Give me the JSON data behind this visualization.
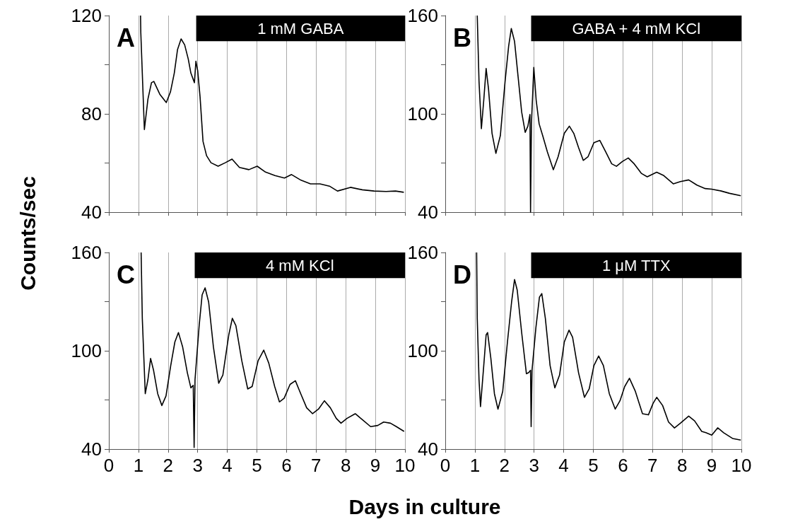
{
  "chart_data": [
    {
      "type": "line",
      "title": "A",
      "ylabel": "Counts/sec",
      "xlim": [
        0,
        10
      ],
      "xticks": [
        0,
        1,
        2,
        3,
        4,
        5,
        6,
        7,
        8,
        9,
        10
      ],
      "ylim": [
        40,
        120
      ],
      "yticks": [
        40,
        {
          "value": 60,
          "label": null
        },
        80,
        {
          "value": 100,
          "label": null
        },
        120
      ],
      "grid": "x",
      "tick_labels": "y",
      "bands": [
        {
          "axis": "x",
          "from": 2.95,
          "to": 10,
          "label": "1 mM GABA",
          "color": "#000000"
        }
      ],
      "series": [
        {
          "color": "#000000",
          "x": [
            1.07,
            1.08,
            1.2,
            1.32,
            1.44,
            1.52,
            1.72,
            1.94,
            2.08,
            2.21,
            2.32,
            2.44,
            2.56,
            2.68,
            2.77,
            2.89,
            2.94,
            3.0,
            3.08,
            3.18,
            3.3,
            3.45,
            3.69,
            3.93,
            4.16,
            4.41,
            4.73,
            5.01,
            5.29,
            5.61,
            5.93,
            6.17,
            6.49,
            6.81,
            7.13,
            7.45,
            7.72,
            8.16,
            8.56,
            8.96,
            9.36,
            9.68,
            9.96
          ],
          "values": [
            120,
            112.9,
            73.6,
            86,
            92.7,
            93.2,
            88,
            84.6,
            88.9,
            96.6,
            106.2,
            110.5,
            108.1,
            102.4,
            96.6,
            92.7,
            101.4,
            97.6,
            87,
            68.8,
            63,
            60.1,
            58.7,
            60.1,
            61.6,
            58.2,
            57.3,
            58.7,
            56.3,
            54.9,
            53.9,
            55.3,
            53,
            51.5,
            51.5,
            50.6,
            48.6,
            50.1,
            49.1,
            48.6,
            48.4,
            48.6,
            48.1
          ]
        }
      ]
    },
    {
      "type": "line",
      "title": "B",
      "xlim": [
        0,
        10
      ],
      "xticks": [
        0,
        1,
        2,
        3,
        4,
        5,
        6,
        7,
        8,
        9,
        10
      ],
      "ylim": [
        40,
        160
      ],
      "yticks": [
        40,
        {
          "value": 70,
          "label": null
        },
        100,
        {
          "value": 130,
          "label": null
        },
        160
      ],
      "grid": "x",
      "tick_labels": "y",
      "bands": [
        {
          "axis": "x",
          "from": 2.9,
          "to": 10,
          "label": "GABA + 4 mM KCl",
          "color": "#000000"
        }
      ],
      "series": [
        {
          "color": "#000000",
          "x": [
            1.08,
            1.14,
            1.22,
            1.3,
            1.38,
            1.46,
            1.58,
            1.71,
            1.86,
            2.02,
            2.14,
            2.23,
            2.34,
            2.46,
            2.58,
            2.7,
            2.79,
            2.86,
            2.88,
            2.91,
            2.99,
            3.07,
            3.17,
            3.29,
            3.45,
            3.65,
            3.81,
            4.02,
            4.19,
            4.34,
            4.5,
            4.66,
            4.82,
            5.02,
            5.22,
            5.42,
            5.62,
            5.78,
            5.98,
            6.18,
            6.38,
            6.62,
            6.82,
            7.14,
            7.38,
            7.7,
            7.94,
            8.22,
            8.5,
            8.78,
            9.0,
            9.3,
            9.6,
            9.98
          ],
          "values": [
            160,
            119.8,
            91,
            108.3,
            127.7,
            115.4,
            88.1,
            75.9,
            86.7,
            119.8,
            141.3,
            152.1,
            144.2,
            122.6,
            101.1,
            88.7,
            92.5,
            99.6,
            40,
            93.9,
            128.4,
            108.3,
            93.9,
            86.7,
            76.7,
            65.9,
            73.8,
            88.1,
            92.5,
            88.1,
            79.5,
            71.6,
            73.8,
            82.4,
            83.8,
            76.7,
            69.5,
            68,
            70.9,
            73.1,
            69.5,
            63.7,
            61.6,
            64.4,
            62.3,
            57.3,
            58.7,
            59.7,
            56.5,
            54.4,
            54,
            53,
            51.5,
            50
          ]
        }
      ]
    },
    {
      "type": "line",
      "title": "C",
      "xlabel": "Days in culture",
      "xlim": [
        0,
        10
      ],
      "xticks": [
        0,
        1,
        2,
        3,
        4,
        5,
        6,
        7,
        8,
        9,
        10
      ],
      "ylim": [
        40,
        160
      ],
      "yticks": [
        40,
        {
          "value": 70,
          "label": null
        },
        100,
        {
          "value": 130,
          "label": null
        },
        160
      ],
      "grid": "x",
      "bands": [
        {
          "axis": "x",
          "from": 2.9,
          "to": 10,
          "label": "4 mM KCl",
          "color": "#000000"
        }
      ],
      "series": [
        {
          "color": "#000000",
          "x": [
            1.09,
            1.13,
            1.23,
            1.32,
            1.41,
            1.51,
            1.65,
            1.79,
            1.93,
            2.09,
            2.23,
            2.35,
            2.49,
            2.65,
            2.77,
            2.85,
            2.88,
            2.91,
            3.05,
            3.15,
            3.25,
            3.37,
            3.53,
            3.71,
            3.85,
            4.05,
            4.17,
            4.29,
            4.49,
            4.69,
            4.84,
            5.04,
            5.23,
            5.4,
            5.6,
            5.76,
            5.92,
            6.12,
            6.3,
            6.48,
            6.68,
            6.88,
            7.08,
            7.28,
            7.48,
            7.68,
            7.84,
            8.04,
            8.32,
            8.56,
            8.84,
            9.08,
            9.28,
            9.51,
            9.71,
            9.97
          ],
          "values": [
            160,
            119.8,
            73.8,
            82.4,
            95.3,
            88.1,
            73.8,
            66.6,
            72.4,
            91,
            105.4,
            111.1,
            102.5,
            86.7,
            77.4,
            78.9,
            41,
            82.4,
            115.4,
            134.1,
            138.4,
            129.8,
            102.5,
            80.2,
            85.2,
            109.7,
            119.8,
            115.4,
            93.9,
            76.7,
            78.2,
            93.9,
            100.4,
            92.5,
            78.2,
            68.8,
            71,
            79.5,
            81.7,
            73.8,
            65.2,
            61.6,
            64.4,
            69.5,
            65.2,
            58.7,
            55.8,
            58.7,
            61.6,
            58,
            53.7,
            54.4,
            56.5,
            55.8,
            53.7,
            50.8
          ]
        }
      ]
    },
    {
      "type": "line",
      "title": "D",
      "xlim": [
        0,
        10
      ],
      "xticks": [
        0,
        1,
        2,
        3,
        4,
        5,
        6,
        7,
        8,
        9,
        10
      ],
      "ylim": [
        40,
        160
      ],
      "yticks": [
        40,
        {
          "value": 70,
          "label": null
        },
        100,
        {
          "value": 130,
          "label": null
        },
        160
      ],
      "grid": "x",
      "bands": [
        {
          "axis": "x",
          "from": 2.9,
          "to": 10,
          "label": "1 μM TTX",
          "color": "#000000"
        }
      ],
      "series": [
        {
          "color": "#000000",
          "x": [
            1.06,
            1.08,
            1.14,
            1.19,
            1.3,
            1.38,
            1.43,
            1.54,
            1.66,
            1.78,
            1.94,
            2.1,
            2.24,
            2.34,
            2.43,
            2.58,
            2.74,
            2.82,
            2.88,
            2.9,
            2.93,
            3.06,
            3.18,
            3.26,
            3.38,
            3.54,
            3.7,
            3.86,
            4.02,
            4.18,
            4.3,
            4.5,
            4.7,
            4.86,
            5.02,
            5.18,
            5.34,
            5.54,
            5.74,
            5.9,
            6.06,
            6.22,
            6.42,
            6.66,
            6.86,
            7.02,
            7.14,
            7.34,
            7.54,
            7.74,
            7.94,
            8.22,
            8.42,
            8.66,
            8.8,
            9.0,
            9.2,
            9.4,
            9.7,
            9.98
          ],
          "values": [
            160,
            119.8,
            82.4,
            65.9,
            91,
            109.7,
            111.1,
            95.3,
            73.8,
            64.4,
            75.2,
            105.4,
            129.8,
            143.5,
            137,
            111.1,
            86,
            86.7,
            88.1,
            53.7,
            88.1,
            114,
            132.7,
            134.9,
            119.8,
            91,
            77.4,
            85.2,
            105.4,
            112.6,
            108.3,
            86.7,
            71.6,
            76.7,
            91,
            96.8,
            91,
            73.8,
            64.4,
            69.5,
            78.2,
            83.2,
            75.2,
            61.6,
            60.9,
            68,
            71.6,
            66.6,
            56.5,
            52.9,
            55.8,
            60.1,
            57.2,
            50.8,
            50,
            48.5,
            53,
            50,
            46.5,
            45.5
          ]
        }
      ]
    }
  ]
}
